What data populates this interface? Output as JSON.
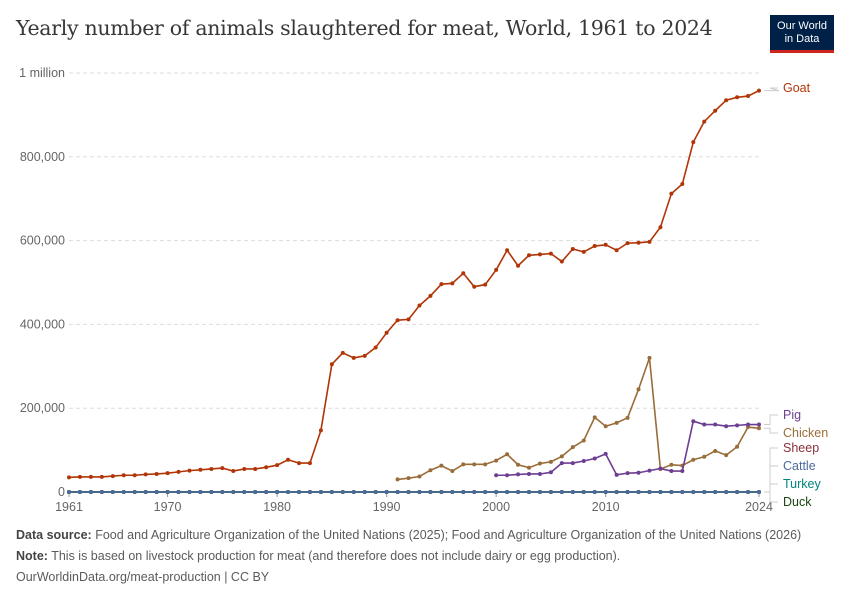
{
  "title": "Yearly number of animals slaughtered for meat, World, 1961 to 2024",
  "logo": {
    "line1": "Our World",
    "line2": "in Data"
  },
  "footer": {
    "source_label": "Data source:",
    "source": "Food and Agriculture Organization of the United Nations (2025); Food and Agriculture Organization of the United Nations (2026)",
    "note_label": "Note:",
    "note": "This is based on livestock production for meat (and therefore does not include dairy or egg production).",
    "link": "OurWorldinData.org/meat-production | CC BY"
  },
  "chart_data": {
    "type": "line",
    "title": "Yearly number of animals slaughtered for meat, World, 1961 to 2024",
    "xlim": [
      1961,
      2024
    ],
    "ylim": [
      0,
      1000000
    ],
    "yticks": [
      {
        "v": 0,
        "label": "0"
      },
      {
        "v": 200000,
        "label": "200,000"
      },
      {
        "v": 400000,
        "label": "400,000"
      },
      {
        "v": 600000,
        "label": "600,000"
      },
      {
        "v": 800000,
        "label": "800,000"
      },
      {
        "v": 1000000,
        "label": "1 million"
      }
    ],
    "xticks": [
      {
        "v": 1961,
        "label": "1961"
      },
      {
        "v": 1970,
        "label": "1970"
      },
      {
        "v": 1980,
        "label": "1980"
      },
      {
        "v": 1990,
        "label": "1990"
      },
      {
        "v": 2000,
        "label": "2000"
      },
      {
        "v": 2010,
        "label": "2010"
      },
      {
        "v": 2024,
        "label": "2024"
      }
    ],
    "grid": true,
    "series": [
      {
        "name": "Goat",
        "color": "#b13507",
        "start": 1961,
        "values": [
          35000,
          36000,
          36000,
          36000,
          38000,
          40000,
          40000,
          42000,
          43000,
          45000,
          48000,
          51000,
          53000,
          55000,
          57000,
          50000,
          55000,
          55000,
          59000,
          64000,
          77000,
          69000,
          69000,
          147000,
          305000,
          332000,
          320000,
          325000,
          345000,
          380000,
          410000,
          412000,
          445000,
          468000,
          496000,
          498000,
          522000,
          490000,
          495000,
          530000,
          577000,
          540000,
          565000,
          567000,
          569000,
          550000,
          580000,
          573000,
          587000,
          590000,
          577000,
          594000,
          595000,
          597000,
          632000,
          712000,
          735000,
          835000,
          884000,
          910000,
          935000,
          942000,
          945000,
          958000
        ]
      },
      {
        "name": "Pig",
        "color": "#6d3e91",
        "start": 2000,
        "values": [
          40000,
          40000,
          42000,
          43000,
          43000,
          47000,
          69000,
          69000,
          74000,
          80000,
          91000,
          41000,
          45000,
          46000,
          51000,
          56000,
          50000,
          50000,
          169000,
          161000,
          161000,
          157000,
          159000,
          161000,
          161000
        ]
      },
      {
        "name": "Chicken",
        "color": "#996d39",
        "start": 1991,
        "values": [
          30000,
          33000,
          37000,
          52000,
          63000,
          50000,
          66000,
          66000,
          66000,
          75000,
          90000,
          65000,
          58000,
          68000,
          72000,
          85000,
          107000,
          123000,
          178000,
          157000,
          165000,
          177000,
          245000,
          320000,
          55000,
          65000,
          63000,
          77000,
          84000,
          98000,
          88000,
          108000,
          155000,
          152000
        ]
      },
      {
        "name": "Sheep",
        "color": "#883039",
        "start": 1961,
        "values": "zero"
      },
      {
        "name": "Cattle",
        "color": "#4c6a9c",
        "start": 1961,
        "values": "zero"
      },
      {
        "name": "Turkey",
        "color": "#00847e",
        "start": 1961,
        "values": "zero"
      },
      {
        "name": "Duck",
        "color": "#18470f",
        "start": 1961,
        "values": "zero"
      }
    ]
  }
}
